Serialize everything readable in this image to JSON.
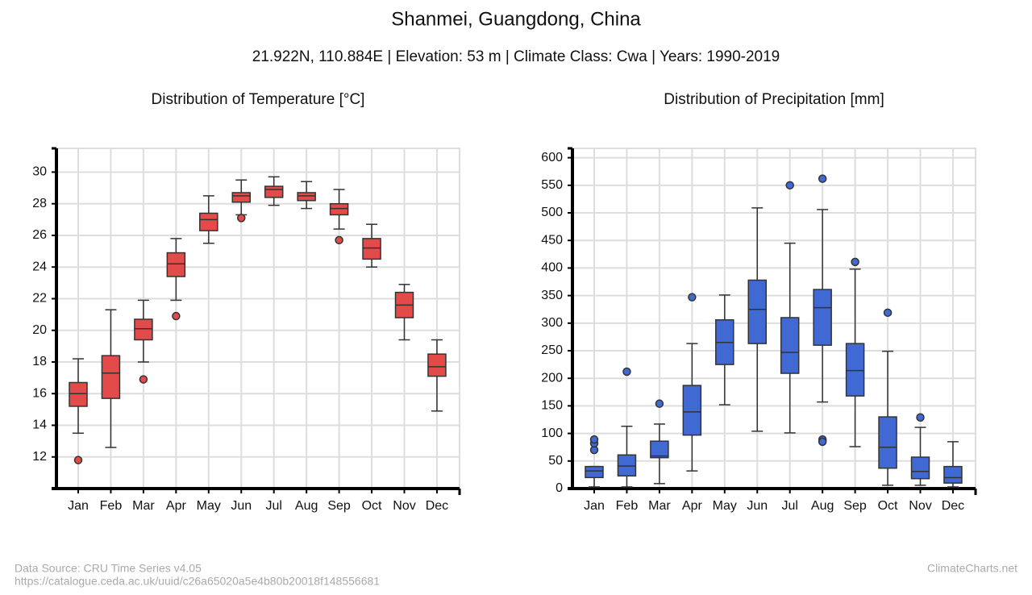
{
  "header": {
    "title": "Shanmei, Guangdong, China",
    "subtitle": "21.922N, 110.884E | Elevation: 53 m | Climate Class: Cwa | Years: 1990-2019"
  },
  "chart_data": [
    {
      "type": "box",
      "title": "Distribution of Temperature [°C]",
      "color": "#e34a4a",
      "grid": true,
      "categories": [
        "Jan",
        "Feb",
        "Mar",
        "Apr",
        "May",
        "Jun",
        "Jul",
        "Aug",
        "Sep",
        "Oct",
        "Nov",
        "Dec"
      ],
      "ylim": [
        10,
        31.5
      ],
      "yticks": [
        12,
        14,
        16,
        18,
        20,
        22,
        24,
        26,
        28,
        30
      ],
      "boxes": [
        {
          "low": 13.5,
          "q1": 15.2,
          "median": 16,
          "q3": 16.7,
          "high": 18.2,
          "outliers": [
            11.8
          ]
        },
        {
          "low": 12.6,
          "q1": 15.7,
          "median": 17.3,
          "q3": 18.4,
          "high": 21.3,
          "outliers": []
        },
        {
          "low": 18,
          "q1": 19.4,
          "median": 20.1,
          "q3": 20.7,
          "high": 21.9,
          "outliers": [
            16.9
          ]
        },
        {
          "low": 21.9,
          "q1": 23.4,
          "median": 24.2,
          "q3": 24.9,
          "high": 25.8,
          "outliers": [
            20.9
          ]
        },
        {
          "low": 25.5,
          "q1": 26.3,
          "median": 27,
          "q3": 27.4,
          "high": 28.5,
          "outliers": []
        },
        {
          "low": 27.3,
          "q1": 28.1,
          "median": 28.5,
          "q3": 28.7,
          "high": 29.5,
          "outliers": [
            27.1
          ]
        },
        {
          "low": 27.9,
          "q1": 28.4,
          "median": 28.9,
          "q3": 29.1,
          "high": 29.7,
          "outliers": []
        },
        {
          "low": 27.7,
          "q1": 28.2,
          "median": 28.5,
          "q3": 28.7,
          "high": 29.4,
          "outliers": []
        },
        {
          "low": 26.4,
          "q1": 27.3,
          "median": 27.7,
          "q3": 28,
          "high": 28.9,
          "outliers": [
            25.7
          ]
        },
        {
          "low": 24,
          "q1": 24.5,
          "median": 25.2,
          "q3": 25.8,
          "high": 26.7,
          "outliers": []
        },
        {
          "low": 19.4,
          "q1": 20.8,
          "median": 21.6,
          "q3": 22.4,
          "high": 22.9,
          "outliers": []
        },
        {
          "low": 14.9,
          "q1": 17.1,
          "median": 17.7,
          "q3": 18.5,
          "high": 19.4,
          "outliers": []
        }
      ]
    },
    {
      "type": "box",
      "title": "Distribution of Precipitation [mm]",
      "color": "#4169d4",
      "grid": true,
      "categories": [
        "Jan",
        "Feb",
        "Mar",
        "Apr",
        "May",
        "Jun",
        "Jul",
        "Aug",
        "Sep",
        "Oct",
        "Nov",
        "Dec"
      ],
      "ylim": [
        0,
        617
      ],
      "yticks": [
        0,
        50,
        100,
        150,
        200,
        250,
        300,
        350,
        400,
        450,
        500,
        550,
        600
      ],
      "boxes": [
        {
          "low": 3,
          "q1": 20,
          "median": 32,
          "q3": 40,
          "high": 40,
          "outliers": [
            70,
            82,
            89
          ]
        },
        {
          "low": 3,
          "q1": 23,
          "median": 41,
          "q3": 61,
          "high": 113,
          "outliers": [
            212
          ]
        },
        {
          "low": 9,
          "q1": 56,
          "median": 59,
          "q3": 86,
          "high": 117,
          "outliers": [
            154
          ]
        },
        {
          "low": 32,
          "q1": 97,
          "median": 139,
          "q3": 187,
          "high": 263,
          "outliers": [
            347
          ]
        },
        {
          "low": 152,
          "q1": 225,
          "median": 265,
          "q3": 306,
          "high": 351,
          "outliers": []
        },
        {
          "low": 104,
          "q1": 263,
          "median": 325,
          "q3": 378,
          "high": 509,
          "outliers": []
        },
        {
          "low": 101,
          "q1": 209,
          "median": 247,
          "q3": 310,
          "high": 445,
          "outliers": [
            550
          ]
        },
        {
          "low": 157,
          "q1": 260,
          "median": 328,
          "q3": 361,
          "high": 506,
          "outliers": [
            562,
            89,
            85
          ]
        },
        {
          "low": 76,
          "q1": 168,
          "median": 214,
          "q3": 263,
          "high": 398,
          "outliers": [
            411
          ]
        },
        {
          "low": 6,
          "q1": 37,
          "median": 75,
          "q3": 130,
          "high": 249,
          "outliers": [
            319
          ]
        },
        {
          "low": 6,
          "q1": 18,
          "median": 31,
          "q3": 57,
          "high": 111,
          "outliers": [
            129
          ]
        },
        {
          "low": 3,
          "q1": 10,
          "median": 20,
          "q3": 40,
          "high": 85,
          "outliers": []
        }
      ]
    }
  ],
  "footer": {
    "source": "Data Source: CRU Time Series v4.05",
    "url": "https://catalogue.ceda.ac.uk/uuid/c26a65020a5e4b80b20018f148556681",
    "brand": "ClimateCharts.net"
  }
}
